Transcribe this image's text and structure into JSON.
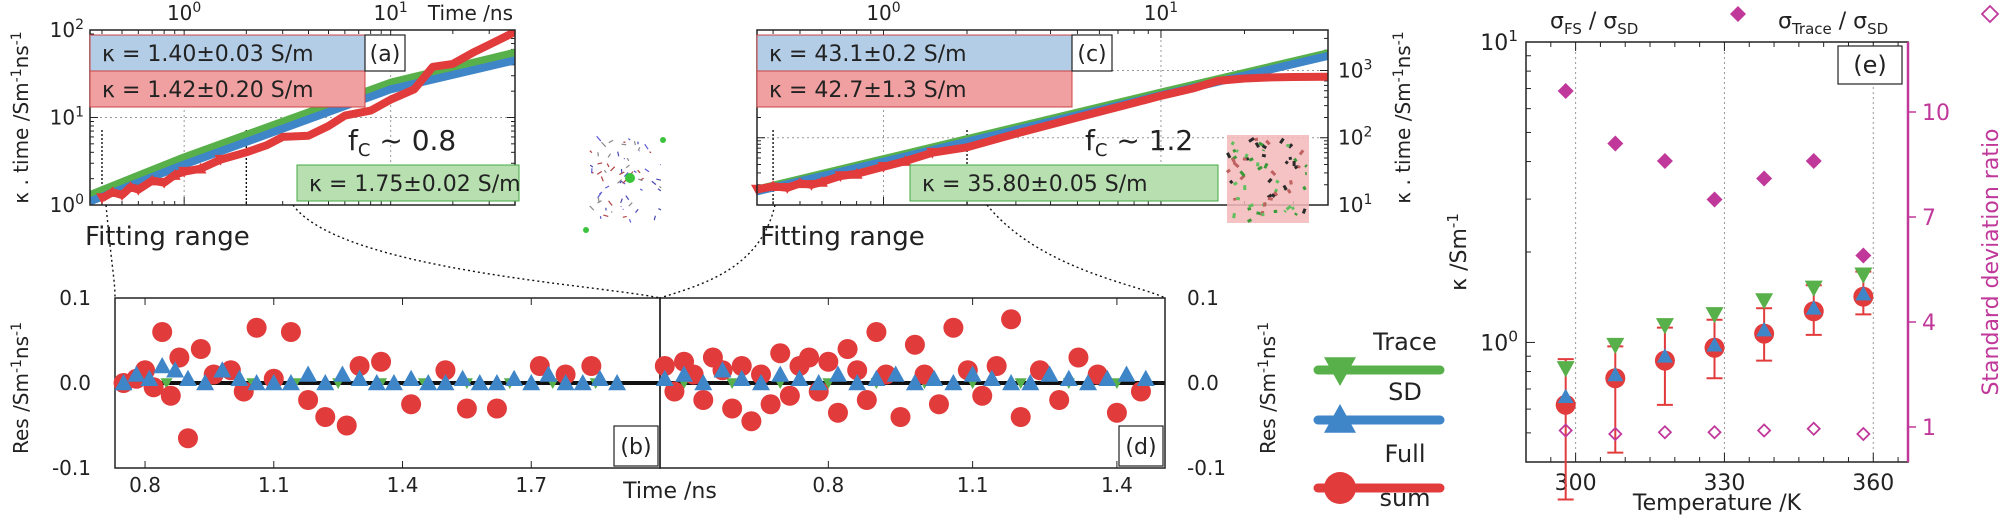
{
  "chart_data": [
    {
      "id": "a",
      "type": "line",
      "panel_label": "(a)",
      "x_axis_label": "Time /ns",
      "y_axis_label": "κ . time /Sm⁻¹ns⁻¹",
      "x_scale": "log",
      "y_scale": "log",
      "xlim": [
        0.35,
        40
      ],
      "ylim": [
        1,
        100
      ],
      "x_ticks": [
        1,
        10
      ],
      "x_tick_labels": [
        "10⁰",
        "10¹"
      ],
      "y_ticks": [
        1,
        10,
        100
      ],
      "y_tick_labels": [
        "10⁰",
        "10¹",
        "10²"
      ],
      "boxes": [
        {
          "text": "κ = 1.40±0.03 S/m",
          "color": "#b3cde6"
        },
        {
          "text": "κ = 1.42±0.20 S/m",
          "color": "#f0a0a0"
        },
        {
          "text": "κ = 1.75±0.02 S/m",
          "color": "#b7dfb0"
        }
      ],
      "fc_text": "f",
      "fc_sub": "C",
      "fc_value": " ~ 0.8",
      "fitting_label": "Fitting range",
      "fit_range_x": [
        0.4,
        2
      ],
      "series": [
        {
          "color": "#e23b3b",
          "x": [
            0.4,
            0.45,
            0.5,
            0.55,
            0.6,
            0.7,
            0.8,
            0.9,
            1.0,
            1.2,
            1.5,
            2,
            2.5,
            3,
            4,
            5,
            6,
            8,
            10,
            13,
            16,
            20,
            25,
            30,
            40
          ],
          "y": [
            1.2,
            1.4,
            1.3,
            1.6,
            1.5,
            1.9,
            1.8,
            2.2,
            2.4,
            2.6,
            3.3,
            4.0,
            4.8,
            6.0,
            6.2,
            8.0,
            10.5,
            12,
            16,
            21,
            38,
            41,
            55,
            68,
            95
          ]
        },
        {
          "color": "#58b04a",
          "x": [
            0.35,
            1,
            10,
            40
          ],
          "y": [
            1.3,
            3.5,
            25,
            55
          ]
        },
        {
          "color": "#3f86c8",
          "x": [
            0.35,
            1,
            10,
            40
          ],
          "y": [
            1.1,
            2.9,
            21,
            45
          ]
        }
      ]
    },
    {
      "id": "c",
      "type": "line",
      "panel_label": "(c)",
      "x_axis_label": "",
      "y_axis_label": "κ . time /Sm⁻¹ns⁻¹",
      "x_scale": "log",
      "y_scale": "log",
      "xlim": [
        0.35,
        40
      ],
      "ylim": [
        10,
        4000
      ],
      "x_ticks": [
        1,
        10
      ],
      "x_tick_labels": [
        "10⁰",
        "10¹"
      ],
      "y_ticks": [
        10,
        100,
        1000
      ],
      "y_tick_labels": [
        "10¹",
        "10²",
        "10³"
      ],
      "boxes": [
        {
          "text": "κ = 43.1±0.2 S/m",
          "color": "#b3cde6"
        },
        {
          "text": "κ = 42.7±1.3 S/m",
          "color": "#f0a0a0"
        },
        {
          "text": "κ = 35.80±0.05 S/m",
          "color": "#b7dfb0"
        }
      ],
      "fc_text": "f",
      "fc_sub": "C",
      "fc_value": " ~ 1.2",
      "fitting_label": "Fitting range",
      "fit_range_x": [
        0.4,
        2
      ],
      "series": [
        {
          "color": "#e23b3b",
          "x": [
            0.35,
            0.4,
            0.45,
            0.5,
            0.55,
            0.6,
            0.7,
            0.8,
            1.0,
            1.2,
            1.5,
            2,
            3,
            5,
            8,
            10,
            13,
            16,
            20,
            25,
            30,
            40
          ],
          "y": [
            17,
            19,
            18,
            21,
            20,
            22,
            27,
            29,
            37,
            45,
            60,
            72,
            115,
            200,
            330,
            420,
            540,
            700,
            760,
            790,
            800,
            805
          ]
        },
        {
          "color": "#58b04a",
          "x": [
            0.35,
            1,
            10,
            40
          ],
          "y": [
            17,
            48,
            470,
            1800
          ]
        },
        {
          "color": "#3f86c8",
          "x": [
            0.35,
            1,
            10,
            40
          ],
          "y": [
            16,
            44,
            430,
            1650
          ]
        }
      ]
    },
    {
      "id": "b",
      "type": "scatter",
      "panel_label": "(b)",
      "x_axis_label": "Time /ns",
      "y_axis_label": "Res /Sm⁻¹ns⁻¹",
      "xlim": [
        0.73,
        2.0
      ],
      "ylim": [
        -0.1,
        0.1
      ],
      "x_ticks": [
        0.8,
        1.1,
        1.4,
        1.7
      ],
      "x_tick_labels": [
        "0.8",
        "1.1",
        "1.4",
        "1.7"
      ],
      "y_ticks": [
        -0.1,
        0.0,
        0.1
      ],
      "y_tick_labels": [
        "-0.1",
        "0.0",
        "0.1"
      ],
      "series": [
        {
          "name": "Full sum",
          "marker": "circle",
          "color": "#e23b3b",
          "x": [
            0.75,
            0.78,
            0.8,
            0.82,
            0.84,
            0.86,
            0.88,
            0.9,
            0.93,
            0.96,
            1.0,
            1.03,
            1.06,
            1.1,
            1.14,
            1.18,
            1.22,
            1.27,
            1.3,
            1.35,
            1.42,
            1.5,
            1.55,
            1.62,
            1.72,
            1.78,
            1.84
          ],
          "y": [
            0.0,
            0.005,
            0.015,
            -0.005,
            0.06,
            -0.015,
            0.03,
            -0.065,
            0.04,
            0.01,
            0.015,
            -0.01,
            0.065,
            0.005,
            0.06,
            -0.02,
            -0.04,
            -0.05,
            0.02,
            0.025,
            -0.025,
            0.015,
            -0.03,
            -0.03,
            0.02,
            0.01,
            0.02
          ]
        },
        {
          "name": "SD",
          "marker": "triangle",
          "color": "#3f86c8",
          "x": [
            0.75,
            0.78,
            0.81,
            0.84,
            0.87,
            0.9,
            0.94,
            0.98,
            1.02,
            1.06,
            1.1,
            1.14,
            1.18,
            1.22,
            1.26,
            1.3,
            1.34,
            1.38,
            1.42,
            1.46,
            1.5,
            1.54,
            1.58,
            1.62,
            1.66,
            1.7,
            1.74,
            1.78,
            1.82,
            1.86,
            1.9
          ],
          "y": [
            0.0,
            0.01,
            0.005,
            0.02,
            0.015,
            0.005,
            0.0,
            0.015,
            0.005,
            0.0,
            0.0,
            0.0,
            0.01,
            0.0,
            0.01,
            0.005,
            0.0,
            0.0,
            0.005,
            0.0,
            0.0,
            0.005,
            0.0,
            0.0,
            0.005,
            0.0,
            0.01,
            0.0,
            0.0,
            0.005,
            0.0
          ]
        },
        {
          "name": "Trace",
          "marker": "triangle-down",
          "color": "#58b04a",
          "x": [
            0.76,
            0.85,
            0.95,
            1.05,
            1.15,
            1.25,
            1.35,
            1.45,
            1.55,
            1.65,
            1.75,
            1.85
          ],
          "y": [
            0.0,
            0.0,
            0.0,
            0.0,
            0.0,
            0.0,
            0.0,
            0.0,
            0.0,
            0.0,
            0.0,
            0.0
          ]
        }
      ]
    },
    {
      "id": "d",
      "type": "scatter",
      "panel_label": "(d)",
      "x_axis_label": "",
      "y_axis_label": "Res /Sm⁻¹ns⁻¹",
      "xlim": [
        0.45,
        1.5
      ],
      "ylim": [
        -0.1,
        0.1
      ],
      "x_ticks": [
        0.8,
        1.1,
        1.4
      ],
      "x_tick_labels": [
        "0.8",
        "1.1",
        "1.4"
      ],
      "y_ticks": [
        -0.1,
        0.0,
        0.1
      ],
      "y_tick_labels": [
        "-0.1",
        "0.0",
        "0.1"
      ],
      "series": [
        {
          "name": "Full sum",
          "marker": "circle",
          "color": "#e23b3b",
          "x": [
            0.46,
            0.48,
            0.5,
            0.52,
            0.54,
            0.56,
            0.58,
            0.6,
            0.62,
            0.64,
            0.66,
            0.68,
            0.7,
            0.72,
            0.74,
            0.76,
            0.78,
            0.8,
            0.82,
            0.84,
            0.86,
            0.88,
            0.9,
            0.92,
            0.95,
            0.98,
            1.0,
            1.03,
            1.06,
            1.09,
            1.12,
            1.15,
            1.18,
            1.2,
            1.24,
            1.28,
            1.32,
            1.36,
            1.4,
            1.45
          ],
          "y": [
            0.02,
            -0.01,
            0.025,
            0.01,
            -0.02,
            0.03,
            0.015,
            -0.03,
            0.02,
            -0.045,
            0.01,
            -0.025,
            0.035,
            -0.015,
            0.02,
            0.03,
            -0.01,
            0.025,
            -0.035,
            0.04,
            0.015,
            -0.02,
            0.06,
            0.01,
            -0.04,
            0.045,
            0.01,
            -0.025,
            0.065,
            0.015,
            -0.015,
            0.02,
            0.075,
            -0.04,
            0.015,
            -0.02,
            0.03,
            0.01,
            -0.035,
            -0.01
          ]
        },
        {
          "name": "SD",
          "marker": "triangle",
          "color": "#3f86c8",
          "x": [
            0.46,
            0.5,
            0.54,
            0.58,
            0.62,
            0.66,
            0.7,
            0.74,
            0.78,
            0.82,
            0.86,
            0.9,
            0.94,
            0.98,
            1.02,
            1.06,
            1.1,
            1.14,
            1.18,
            1.22,
            1.26,
            1.3,
            1.34,
            1.38,
            1.42,
            1.46
          ],
          "y": [
            0.005,
            0.01,
            0.0,
            0.015,
            0.005,
            0.0,
            0.01,
            0.005,
            0.0,
            0.01,
            0.0,
            0.005,
            0.01,
            0.0,
            0.005,
            0.0,
            0.01,
            0.005,
            0.0,
            0.0,
            0.01,
            0.005,
            0.0,
            0.005,
            0.01,
            0.005
          ]
        },
        {
          "name": "Trace",
          "marker": "triangle-down",
          "color": "#58b04a",
          "x": [
            0.5,
            0.6,
            0.7,
            0.8,
            0.9,
            1.0,
            1.1,
            1.2,
            1.3,
            1.4
          ],
          "y": [
            0.0,
            0.0,
            0.0,
            0.0,
            0.0,
            0.0,
            0.0,
            0.0,
            0.0,
            0.0
          ]
        }
      ]
    },
    {
      "id": "e",
      "type": "scatter",
      "panel_label": "(e)",
      "x_axis_label": "Temperature /K",
      "y_axis_label": "κ /Sm⁻¹",
      "y2_axis_label": "Standard deviation ratio",
      "y_scale": "log",
      "xlim": [
        290,
        367
      ],
      "ylim": [
        0.4,
        10
      ],
      "y2lim": [
        0,
        12
      ],
      "x_ticks": [
        300,
        330,
        360
      ],
      "x_tick_labels": [
        "300",
        "330",
        "360"
      ],
      "y_ticks": [
        1,
        10
      ],
      "y_tick_labels": [
        "10⁰",
        "10¹"
      ],
      "y2_ticks": [
        1,
        4,
        7,
        10
      ],
      "y2_tick_labels": [
        "1",
        "4",
        "7",
        "10"
      ],
      "legend_top": [
        {
          "text_main": "σ",
          "sub1": "FS",
          "mid": " / σ",
          "sub2": "SD",
          "marker": "diamond-filled",
          "color": "#c0389a"
        },
        {
          "text_main": "σ",
          "sub1": "Trace",
          "mid": " / σ",
          "sub2": "SD",
          "marker": "diamond-open",
          "color": "#c0389a"
        }
      ],
      "temperatures": [
        298,
        308,
        318,
        328,
        338,
        348,
        358
      ],
      "kappa_full": [
        0.62,
        0.76,
        0.87,
        0.96,
        1.07,
        1.27,
        1.42
      ],
      "kappa_full_err_low": [
        0.3,
        0.43,
        0.62,
        0.76,
        0.87,
        1.06,
        1.24
      ],
      "kappa_full_err_high": [
        0.88,
        0.97,
        1.12,
        1.19,
        1.3,
        1.55,
        1.72
      ],
      "kappa_sd": [
        0.66,
        0.78,
        0.9,
        0.98,
        1.1,
        1.3,
        1.45
      ],
      "kappa_trace": [
        0.82,
        0.98,
        1.14,
        1.24,
        1.38,
        1.52,
        1.68
      ],
      "ratio_fs": [
        10.6,
        9.1,
        8.6,
        7.5,
        8.1,
        8.6,
        5.9
      ],
      "ratio_trace": [
        0.9,
        0.8,
        0.85,
        0.85,
        0.9,
        0.95,
        0.8
      ]
    }
  ],
  "legend": {
    "items": [
      {
        "label": "Trace",
        "color": "#58b04a",
        "marker": "triangle-down"
      },
      {
        "label": "SD",
        "color": "#3f86c8",
        "marker": "triangle"
      },
      {
        "label": "Full",
        "label2": "sum",
        "color": "#e23b3b",
        "marker": "circle"
      }
    ]
  }
}
